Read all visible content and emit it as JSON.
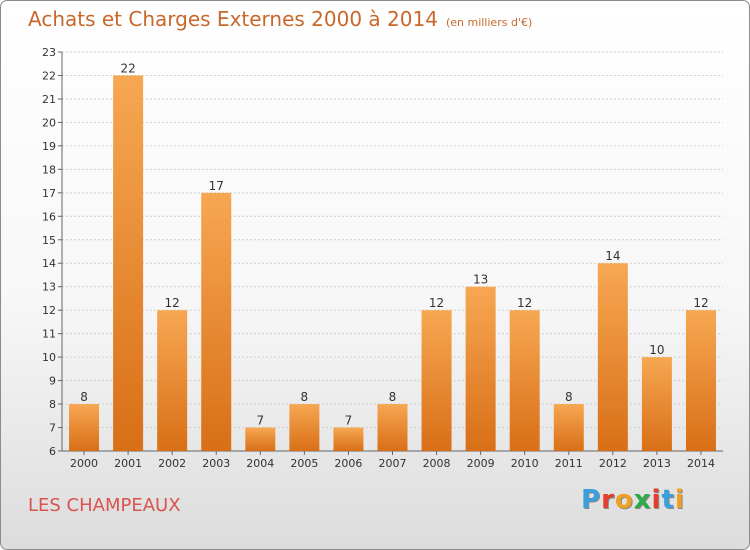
{
  "header": {
    "title": "Achats et Charges Externes 2000 à 2014",
    "unit": "(en milliers d'€)"
  },
  "footer": {
    "commune": "LES CHAMPEAUX",
    "logo": "Proxiti",
    "logo_colors": [
      "#3aa0dd",
      "#e33d2d",
      "#f0a020",
      "#2eaa4a",
      "#e33d2d",
      "#3aa0dd",
      "#f0a020"
    ]
  },
  "colors": {
    "bar_top": "#f7a752",
    "bar_bottom": "#d86f17",
    "title": "#c8682a",
    "grid": "#d0d0d0"
  },
  "chart_data": {
    "type": "bar",
    "title": "Achats et Charges Externes 2000 à 2014",
    "subtitle": "(en milliers d'€)",
    "xlabel": "",
    "ylabel": "",
    "categories": [
      "2000",
      "2001",
      "2002",
      "2003",
      "2004",
      "2005",
      "2006",
      "2007",
      "2008",
      "2009",
      "2010",
      "2011",
      "2012",
      "2013",
      "2014"
    ],
    "values": [
      8,
      22,
      12,
      17,
      7,
      8,
      7,
      8,
      12,
      13,
      12,
      8,
      14,
      10,
      12
    ],
    "ylim": [
      6,
      23
    ],
    "yticks": [
      6,
      7,
      8,
      9,
      10,
      11,
      12,
      13,
      14,
      15,
      16,
      17,
      18,
      19,
      20,
      21,
      22,
      23
    ],
    "grid": true,
    "data_labels": true
  }
}
